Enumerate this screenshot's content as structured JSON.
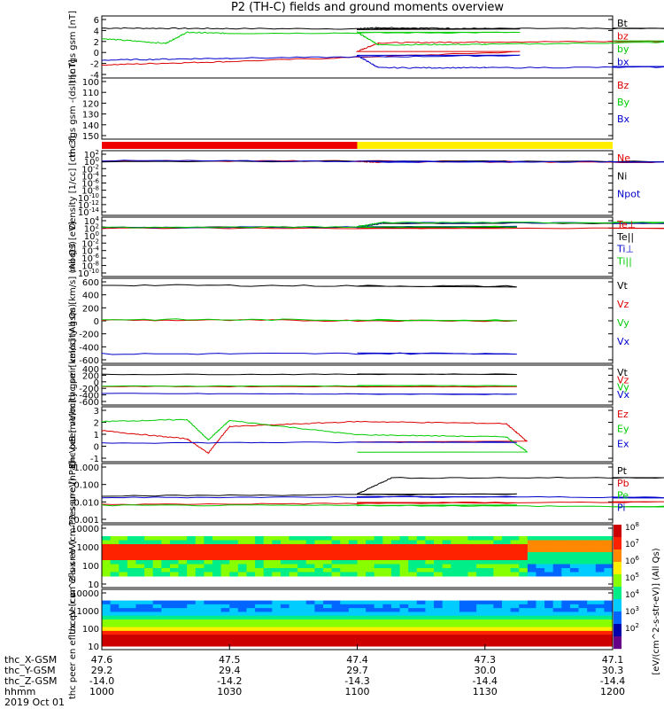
{
  "title": "P2 (TH-C) fields and ground moments overview",
  "date_label": "2019 Oct 01",
  "colorbar": {
    "label": "[eV/(cm^2-s-str-eV)] (All Qs)",
    "ticks": [
      "10^8",
      "10^7",
      "10^6",
      "10^5",
      "10^4",
      "10^3",
      "10^2"
    ]
  },
  "orbit_rows": [
    {
      "label": "thc_X-GSM",
      "values": [
        "47.6",
        "47.5",
        "47.4",
        "47.3",
        "47.1"
      ]
    },
    {
      "label": "thc_Y-GSM",
      "values": [
        "29.2",
        "29.4",
        "29.7",
        "30.0",
        "30.3"
      ]
    },
    {
      "label": "thc_Z-GSM",
      "values": [
        "-14.0",
        "-14.2",
        "-14.3",
        "-14.4",
        "-14.4"
      ]
    },
    {
      "label": "hhmm",
      "values": [
        "1000",
        "1030",
        "1100",
        "1130",
        "1200"
      ]
    }
  ],
  "chart_data": [
    {
      "type": "line",
      "panel": "fgs",
      "ylabel": "thc fgs gsm [nT]",
      "x_range": [
        1000,
        1200
      ],
      "ylim": [
        -5,
        6.5
      ],
      "yticks": [
        "6",
        "4",
        "2",
        "0",
        "-2",
        "-4"
      ],
      "series": [
        {
          "name": "Bt",
          "color": "#000000",
          "x": [
            1000,
            1030,
            1100,
            1105,
            1130,
            1200
          ],
          "values": [
            4.7,
            4.6,
            4.5,
            4.8,
            4.6,
            4.6
          ]
        },
        {
          "name": "bz",
          "color": "#dd0000",
          "x": [
            1000,
            1030,
            1100,
            1105,
            1130,
            1200
          ],
          "values": [
            -3.0,
            -2.3,
            -0.2,
            1.6,
            1.8,
            2.0
          ]
        },
        {
          "name": "by",
          "color": "#00cc00",
          "x": [
            1000,
            1015,
            1020,
            1030,
            1100,
            1105,
            1130,
            1200
          ],
          "values": [
            2.5,
            1.5,
            3.8,
            3.6,
            3.8,
            1.2,
            1.3,
            2.0
          ]
        },
        {
          "name": "bx",
          "color": "#0000cc",
          "x": [
            1000,
            1030,
            1100,
            1105,
            1130,
            1200
          ],
          "values": [
            -2.0,
            -1.6,
            -1.0,
            -3.6,
            -3.6,
            -3.4
          ]
        }
      ]
    },
    {
      "type": "line",
      "panel": "fgs_dsl",
      "ylabel": "thc fgs gsm -(dsl) [nT]",
      "ylim": [
        150,
        100
      ],
      "yticks": [
        "100",
        "110",
        "120",
        "130",
        "140",
        "150"
      ],
      "legend": [
        {
          "name": "Bz",
          "color": "#dd0000"
        },
        {
          "name": "By",
          "color": "#00cc00"
        },
        {
          "name": "Bx",
          "color": "#0000cc"
        }
      ],
      "series": []
    },
    {
      "type": "bar",
      "panel": "mode_bar",
      "segments": [
        {
          "x0": 1000,
          "x1": 1100,
          "color": "#ee0000"
        },
        {
          "x0": 1100,
          "x1": 1200,
          "color": "#ffee00"
        }
      ]
    },
    {
      "type": "line",
      "panel": "density",
      "ylabel": "Density [1/cc] [cm-3]",
      "scale": "log",
      "ylim": [
        -14,
        2
      ],
      "yticks": [
        "10^2",
        "10^0",
        "10^-2",
        "10^-4",
        "10^-6",
        "10^-8",
        "10^-10",
        "10^-12",
        "10^-14"
      ],
      "series": [
        {
          "name": "Ne",
          "color": "#dd0000",
          "x": [
            1000,
            1100,
            1105,
            1200
          ],
          "values": [
            0.2,
            0.0,
            -0.2,
            -0.2
          ]
        },
        {
          "name": "Ni",
          "color": "#000000",
          "x": [
            1000,
            1200
          ],
          "values": [
            0.0,
            0.0
          ]
        },
        {
          "name": "Npot",
          "color": "#0000cc",
          "x": [
            1000,
            1105,
            1200
          ],
          "values": [
            0.2,
            -0.1,
            -0.1
          ]
        }
      ]
    },
    {
      "type": "line",
      "panel": "temperature",
      "ylabel": "moqt3 [eV]",
      "scale": "log",
      "ylim": [
        -10,
        4
      ],
      "yticks": [
        "10^4",
        "10^2",
        "10^0",
        "10^-2",
        "10^-4",
        "10^-6",
        "10^-8",
        "10^-10"
      ],
      "series": [
        {
          "name": "Te⊥",
          "color": "#dd0000",
          "x": [
            1000,
            1200
          ],
          "values": [
            2.0,
            2.0
          ]
        },
        {
          "name": "Te||",
          "color": "#000000",
          "x": [
            1000,
            1100,
            1106,
            1200
          ],
          "values": [
            2.2,
            2.3,
            3.3,
            3.3
          ]
        },
        {
          "name": "Ti⊥",
          "color": "#0000cc",
          "x": [
            1000,
            1100,
            1106,
            1200
          ],
          "values": [
            2.2,
            2.4,
            3.4,
            3.4
          ]
        },
        {
          "name": "Ti||",
          "color": "#00cc00",
          "x": [
            1000,
            1100,
            1106,
            1200
          ],
          "values": [
            2.2,
            2.4,
            3.5,
            3.5
          ]
        }
      ]
    },
    {
      "type": "line",
      "panel": "peir_velocity",
      "ylabel": "thc peir velocity gsm [km/s] (All Qs)",
      "ylim": [
        -600,
        600
      ],
      "yticks": [
        "600",
        "400",
        "200",
        "0",
        "-200",
        "-400",
        "-600"
      ],
      "series": [
        {
          "name": "Vt",
          "color": "#000000",
          "x": [
            1000,
            1100
          ],
          "values": [
            550,
            530
          ]
        },
        {
          "name": "Vz",
          "color": "#dd0000",
          "x": [
            1000,
            1100
          ],
          "values": [
            10,
            0
          ]
        },
        {
          "name": "Vy",
          "color": "#00cc00",
          "x": [
            1000,
            1100
          ],
          "values": [
            20,
            10
          ]
        },
        {
          "name": "Vx",
          "color": "#0000cc",
          "x": [
            1000,
            1100
          ],
          "values": [
            -510,
            -500
          ]
        }
      ]
    },
    {
      "type": "line",
      "panel": "peer_velocity",
      "ylabel": "thc peer velocity gsm [km/s] (All Qs)",
      "ylim": [
        -600,
        600
      ],
      "yticks": [
        "400",
        "200",
        "0",
        "-200",
        "-400",
        "-600"
      ],
      "series": [
        {
          "name": "Vt",
          "color": "#000000",
          "x": [
            1000,
            1100
          ],
          "values": [
            390,
            400
          ]
        },
        {
          "name": "Vz",
          "color": "#dd0000",
          "x": [
            1000,
            1100
          ],
          "values": [
            -50,
            -60
          ]
        },
        {
          "name": "Vy",
          "color": "#00cc00",
          "x": [
            1000,
            1100
          ],
          "values": [
            -40,
            -20
          ]
        },
        {
          "name": "Vx",
          "color": "#0000cc",
          "x": [
            1000,
            1100
          ],
          "values": [
            -310,
            -340
          ]
        }
      ]
    },
    {
      "type": "line",
      "panel": "efield",
      "ylabel": "E=-VxB [mV/m]",
      "ylim": [
        -1.5,
        3.2
      ],
      "yticks": [
        "3",
        "2",
        "1",
        "0",
        "-1"
      ],
      "series": [
        {
          "name": "Ez",
          "color": "#dd0000",
          "x": [
            1000,
            1020,
            1025,
            1030,
            1060,
            1095,
            1100
          ],
          "values": [
            1.2,
            0.4,
            -1.0,
            1.6,
            2.1,
            1.9,
            0.1
          ]
        },
        {
          "name": "Ey",
          "color": "#00cc00",
          "x": [
            1000,
            1020,
            1025,
            1030,
            1060,
            1095,
            1100
          ],
          "values": [
            2.1,
            2.3,
            0.3,
            2.2,
            0.8,
            0.6,
            -0.9
          ]
        },
        {
          "name": "Ex",
          "color": "#0000cc",
          "x": [
            1000,
            1100
          ],
          "values": [
            0.0,
            0.1
          ]
        }
      ]
    },
    {
      "type": "line",
      "panel": "pressure",
      "ylabel": "Pressure [nPa]",
      "scale": "log",
      "ylim": [
        -3,
        0
      ],
      "yticks": [
        "1.000",
        "0.100",
        "0.010",
        "0.001"
      ],
      "series": [
        {
          "name": "Pt",
          "color": "#000000",
          "x": [
            1000,
            1100,
            1108,
            1200
          ],
          "values": [
            -1.65,
            -1.55,
            -0.62,
            -0.6
          ]
        },
        {
          "name": "Pb",
          "color": "#dd0000",
          "x": [
            1000,
            1100,
            1200
          ],
          "values": [
            -2.15,
            -2.05,
            -2.0
          ]
        },
        {
          "name": "Pe",
          "color": "#00cc00",
          "x": [
            1000,
            1100,
            1200
          ],
          "values": [
            -2.2,
            -2.2,
            -2.3
          ]
        },
        {
          "name": "Pi",
          "color": "#0000cc",
          "x": [
            1000,
            1100,
            1200
          ],
          "values": [
            -1.75,
            -1.7,
            -1.75
          ]
        }
      ]
    },
    {
      "type": "heatmap",
      "panel": "peir_eflux",
      "ylabel": "thc peir en eflux eV (cm^2-s-sr-eV)",
      "scale": "log",
      "yticks": [
        "10000",
        "1000",
        "100",
        "10"
      ]
    },
    {
      "type": "heatmap",
      "panel": "peer_eflux",
      "ylabel": "thc peer en eflux eV (cm^2-s-sr-eV)",
      "scale": "log",
      "yticks": [
        "10000",
        "1000",
        "100",
        "10"
      ]
    }
  ]
}
